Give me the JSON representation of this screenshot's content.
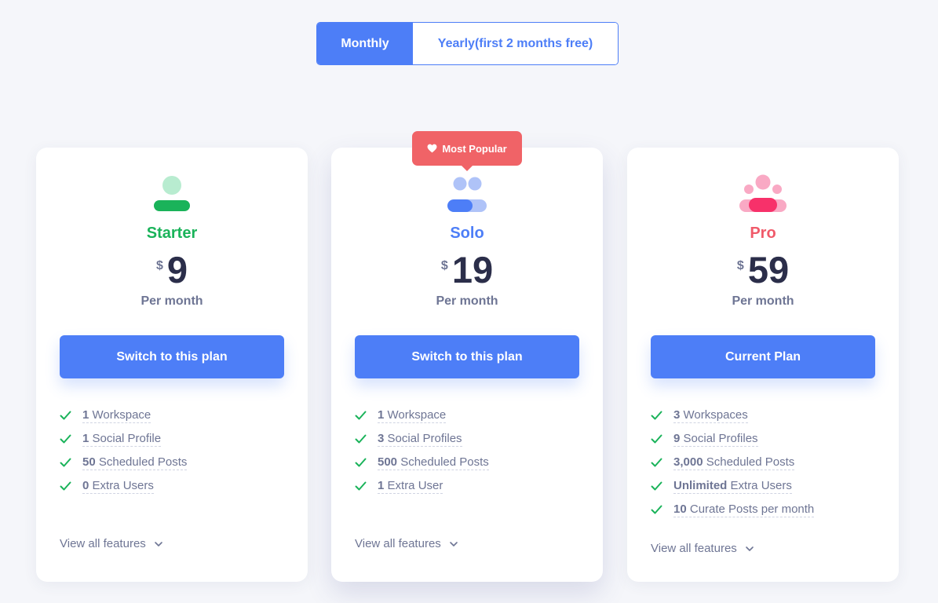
{
  "billing_toggle": {
    "monthly_label": "Monthly",
    "yearly_label": "Yearly(first 2 months free)",
    "selected": "Monthly"
  },
  "badge": {
    "icon": "heart-icon",
    "label": "Most Popular"
  },
  "colors": {
    "accent": "#4d7ef7",
    "starter": "#1ab35a",
    "solo": "#4d7ef7",
    "pro": "#f05a6a",
    "check": "#1ab35a",
    "badge": "#f06367"
  },
  "plans": [
    {
      "name": "Starter",
      "icon": "single-user-icon",
      "currency": "$",
      "price": "9",
      "period": "Per month",
      "button_label": "Switch to this plan",
      "features": [
        {
          "count": "1",
          "label": "Workspace"
        },
        {
          "count": "1",
          "label": "Social Profile"
        },
        {
          "count": "50",
          "label": "Scheduled Posts"
        },
        {
          "count": "0",
          "label": "Extra Users"
        }
      ],
      "view_all": "View all features"
    },
    {
      "name": "Solo",
      "icon": "two-users-icon",
      "currency": "$",
      "price": "19",
      "period": "Per month",
      "button_label": "Switch to this plan",
      "features": [
        {
          "count": "1",
          "label": "Workspace"
        },
        {
          "count": "3",
          "label": "Social Profiles"
        },
        {
          "count": "500",
          "label": "Scheduled Posts"
        },
        {
          "count": "1",
          "label": "Extra User"
        }
      ],
      "view_all": "View all features"
    },
    {
      "name": "Pro",
      "icon": "team-icon",
      "currency": "$",
      "price": "59",
      "period": "Per month",
      "button_label": "Current Plan",
      "features": [
        {
          "count": "3",
          "label": "Workspaces"
        },
        {
          "count": "9",
          "label": "Social Profiles"
        },
        {
          "count": "3,000",
          "label": "Scheduled Posts"
        },
        {
          "count": "Unlimited",
          "label": "Extra Users"
        },
        {
          "count": "10",
          "label": "Curate Posts per month"
        }
      ],
      "view_all": "View all features"
    }
  ]
}
